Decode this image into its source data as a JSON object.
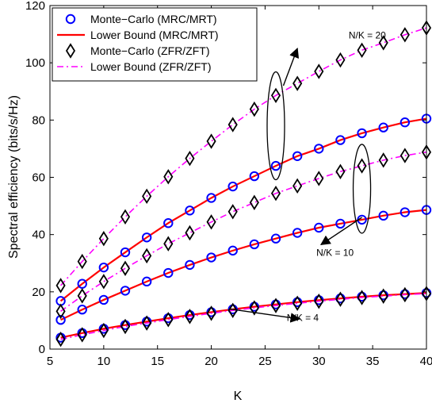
{
  "chart_data": {
    "type": "line",
    "xlabel": "K",
    "ylabel": "Spectral efficiency (bits/s/Hz)",
    "xlim": [
      5,
      40
    ],
    "ylim": [
      0,
      120
    ],
    "xticks": [
      5,
      10,
      15,
      20,
      25,
      30,
      35,
      40
    ],
    "yticks": [
      0,
      20,
      40,
      60,
      80,
      100,
      120
    ],
    "x": [
      6,
      8,
      10,
      12,
      14,
      16,
      18,
      20,
      22,
      24,
      26,
      28,
      30,
      32,
      34,
      36,
      38,
      40
    ],
    "legend_position": "top-left",
    "series": [
      {
        "key": "mc_mrc",
        "name": "Monte−Carlo (MRC/MRT)",
        "group": "N/K = 20",
        "marker": "circle",
        "color": "#0000ff",
        "values": [
          16.8,
          22.8,
          28.5,
          33.8,
          39.0,
          44.0,
          48.4,
          52.8,
          56.8,
          60.4,
          64.0,
          67.4,
          70.0,
          73.0,
          75.4,
          77.4,
          79.2,
          80.5
        ]
      },
      {
        "key": "lb_mrc",
        "name": "Lower Bound (MRC/MRT)",
        "group": "N/K = 20",
        "line": "solid",
        "color": "#ff0000",
        "values": [
          16.8,
          22.8,
          28.5,
          33.8,
          39.0,
          44.0,
          48.4,
          52.8,
          56.8,
          60.4,
          64.0,
          67.4,
          70.0,
          73.0,
          75.4,
          77.4,
          79.2,
          80.5
        ]
      },
      {
        "key": "mc_zf",
        "name": "Monte−Carlo (ZFR/ZFT)",
        "group": "N/K = 20",
        "marker": "diamond",
        "color": "#000000",
        "values": [
          22.2,
          30.6,
          38.6,
          46.2,
          53.4,
          60.2,
          66.6,
          72.6,
          78.4,
          83.8,
          88.6,
          92.8,
          97.0,
          101.0,
          104.4,
          107.0,
          109.8,
          112.2
        ]
      },
      {
        "key": "lb_zf",
        "name": "Lower Bound (ZFR/ZFT)",
        "group": "N/K = 20",
        "line": "dashdot",
        "color": "#ff00ff",
        "values": [
          22.2,
          30.6,
          38.6,
          46.2,
          53.4,
          60.2,
          66.6,
          72.6,
          78.4,
          83.8,
          88.6,
          92.8,
          97.0,
          101.0,
          104.4,
          107.0,
          109.8,
          112.2
        ]
      },
      {
        "key": "mc_mrc",
        "group": "N/K = 10",
        "marker": "circle",
        "color": "#0000ff",
        "values": [
          10.2,
          13.8,
          17.2,
          20.4,
          23.6,
          26.6,
          29.4,
          32.0,
          34.4,
          36.6,
          38.6,
          40.6,
          42.4,
          43.8,
          45.2,
          46.6,
          47.8,
          48.6
        ]
      },
      {
        "key": "lb_mrc",
        "group": "N/K = 10",
        "line": "solid",
        "color": "#ff0000",
        "values": [
          10.2,
          13.8,
          17.2,
          20.4,
          23.6,
          26.6,
          29.4,
          32.0,
          34.4,
          36.6,
          38.6,
          40.6,
          42.4,
          43.8,
          45.2,
          46.6,
          47.8,
          48.6
        ]
      },
      {
        "key": "mc_zf",
        "group": "N/K = 10",
        "marker": "diamond",
        "color": "#000000",
        "values": [
          13.2,
          18.6,
          23.6,
          28.2,
          32.6,
          36.8,
          40.6,
          44.4,
          48.0,
          51.2,
          54.4,
          57.0,
          59.6,
          62.0,
          64.0,
          66.0,
          67.6,
          68.8
        ]
      },
      {
        "key": "lb_zf",
        "group": "N/K = 10",
        "line": "dashdot",
        "color": "#ff00ff",
        "values": [
          13.2,
          18.6,
          23.6,
          28.2,
          32.6,
          36.8,
          40.6,
          44.4,
          48.0,
          51.2,
          54.4,
          57.0,
          59.6,
          62.0,
          64.0,
          66.0,
          67.6,
          68.8
        ]
      },
      {
        "key": "mc_mrc",
        "group": "N/K = 4",
        "marker": "circle",
        "color": "#0000ff",
        "values": [
          4.0,
          5.6,
          7.1,
          8.4,
          9.6,
          10.8,
          11.9,
          12.9,
          13.9,
          14.8,
          15.6,
          16.4,
          17.1,
          17.7,
          18.3,
          18.8,
          19.2,
          19.6
        ]
      },
      {
        "key": "lb_mrc",
        "group": "N/K = 4",
        "line": "solid",
        "color": "#ff0000",
        "values": [
          4.0,
          5.6,
          7.1,
          8.4,
          9.6,
          10.8,
          11.9,
          12.9,
          13.9,
          14.8,
          15.6,
          16.4,
          17.1,
          17.7,
          18.3,
          18.8,
          19.2,
          19.6
        ]
      },
      {
        "key": "mc_zf",
        "group": "N/K = 4",
        "marker": "diamond",
        "color": "#000000",
        "values": [
          3.4,
          5.0,
          6.5,
          7.9,
          9.1,
          10.3,
          11.4,
          12.5,
          13.5,
          14.4,
          15.2,
          16.0,
          16.7,
          17.4,
          18.0,
          18.5,
          19.0,
          19.4
        ]
      },
      {
        "key": "lb_zf",
        "group": "N/K = 4",
        "line": "dashdot",
        "color": "#ff00ff",
        "values": [
          3.4,
          5.0,
          6.5,
          7.9,
          9.1,
          10.3,
          11.4,
          12.5,
          13.5,
          14.4,
          15.2,
          16.0,
          16.7,
          17.4,
          18.0,
          18.5,
          19.0,
          19.4
        ]
      }
    ],
    "legend": [
      {
        "key": "mc_mrc",
        "label": "Monte−Carlo (MRC/MRT)"
      },
      {
        "key": "lb_mrc",
        "label": "Lower Bound (MRC/MRT)"
      },
      {
        "key": "mc_zf",
        "label": "Monte−Carlo (ZFR/ZFT)"
      },
      {
        "key": "lb_zf",
        "label": "Lower Bound (ZFR/ZFT)"
      }
    ],
    "annotations": [
      {
        "text": "N/K = 20",
        "ellipse_center": [
          26,
          78
        ],
        "text_at": [
          34.5,
          108.5
        ],
        "arrow_to": [
          28,
          105
        ],
        "arrow_from": [
          26.7,
          92
        ]
      },
      {
        "text": "N/K = 10",
        "ellipse_center": [
          34,
          56
        ],
        "text_at": [
          31.5,
          32.5
        ],
        "arrow_to": [
          30.2,
          36.5
        ],
        "arrow_from": [
          34,
          46
        ]
      },
      {
        "text": "N/K = 4",
        "text_at": [
          28.5,
          9.8
        ],
        "arrow_to": [
          28.2,
          10.5
        ],
        "arrow_from": [
          21.7,
          14
        ]
      }
    ]
  }
}
